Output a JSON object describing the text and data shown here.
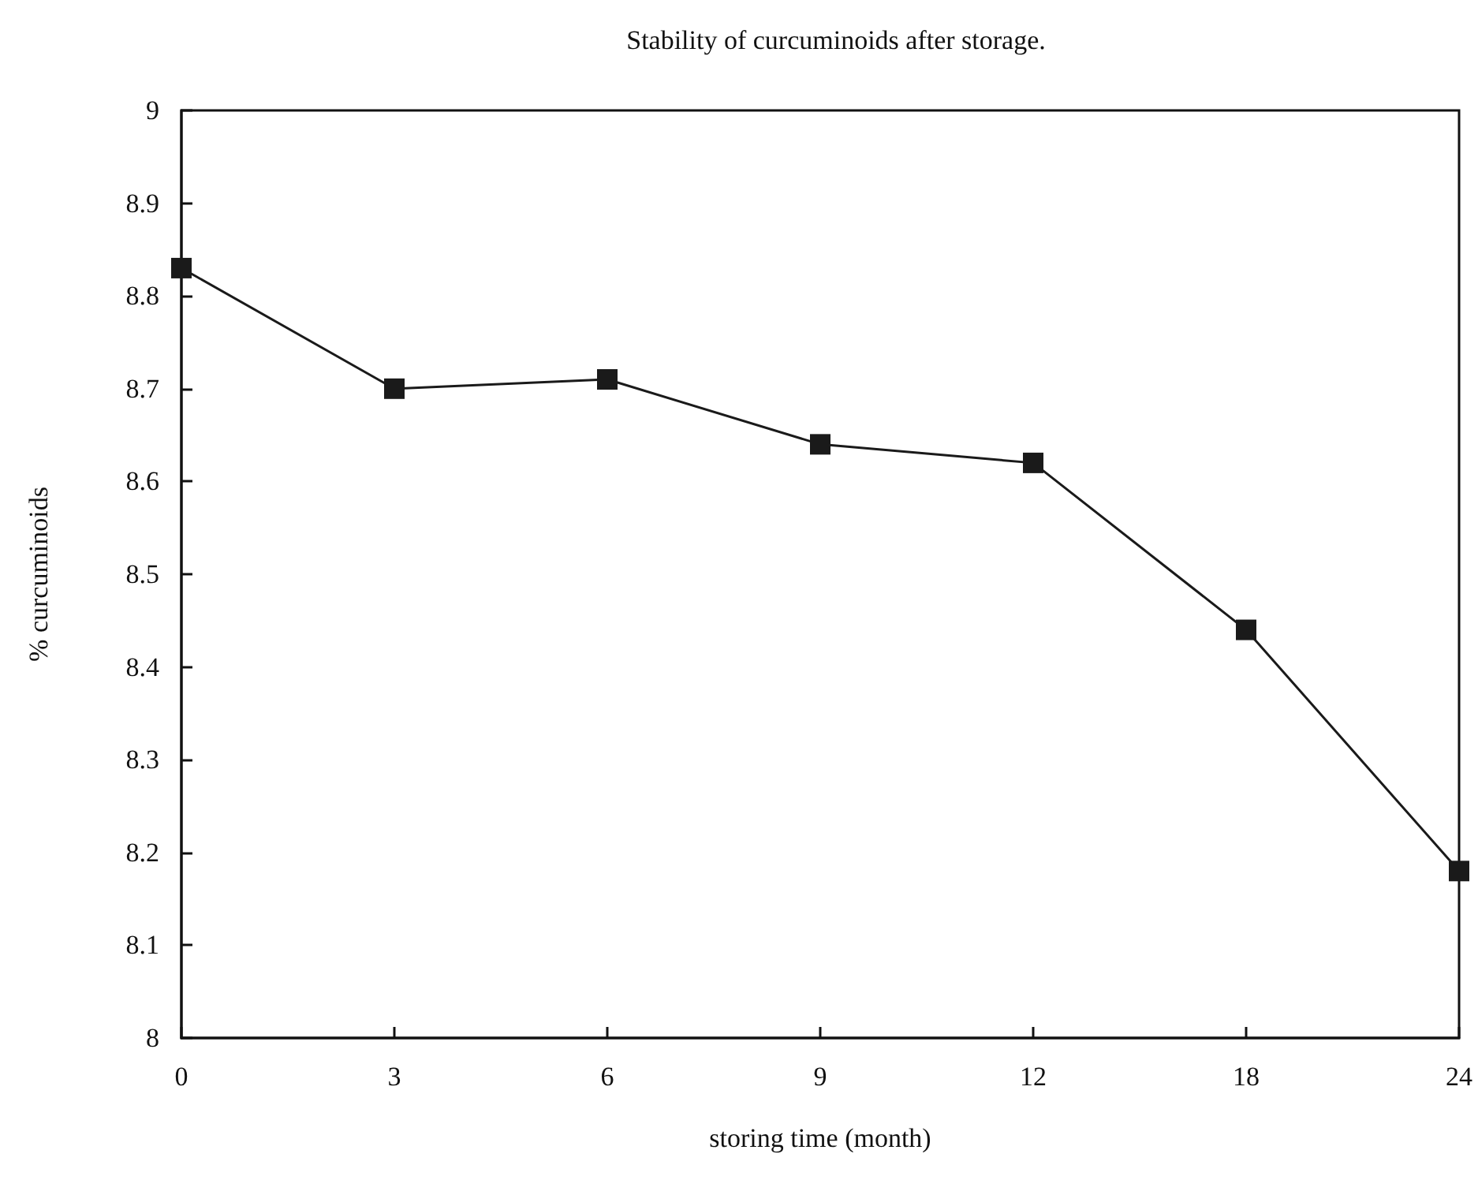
{
  "chart_data": {
    "type": "line",
    "title": "Stability of curcuminoids after storage.",
    "xlabel": "storing time (month)",
    "ylabel": "% curcuminoids",
    "categories": [
      "0",
      "3",
      "6",
      "9",
      "12",
      "18",
      "24"
    ],
    "series": [
      {
        "color": "#1a1a1a",
        "values": [
          8.83,
          8.7,
          8.71,
          8.64,
          8.62,
          8.44,
          8.18
        ]
      }
    ],
    "ylim": [
      8,
      9
    ],
    "yticks": [
      8,
      8.1,
      8.2,
      8.3,
      8.4,
      8.5,
      8.6,
      8.7,
      8.8,
      8.9,
      9
    ],
    "grid": false,
    "marker": "square",
    "line_style": "solid"
  }
}
